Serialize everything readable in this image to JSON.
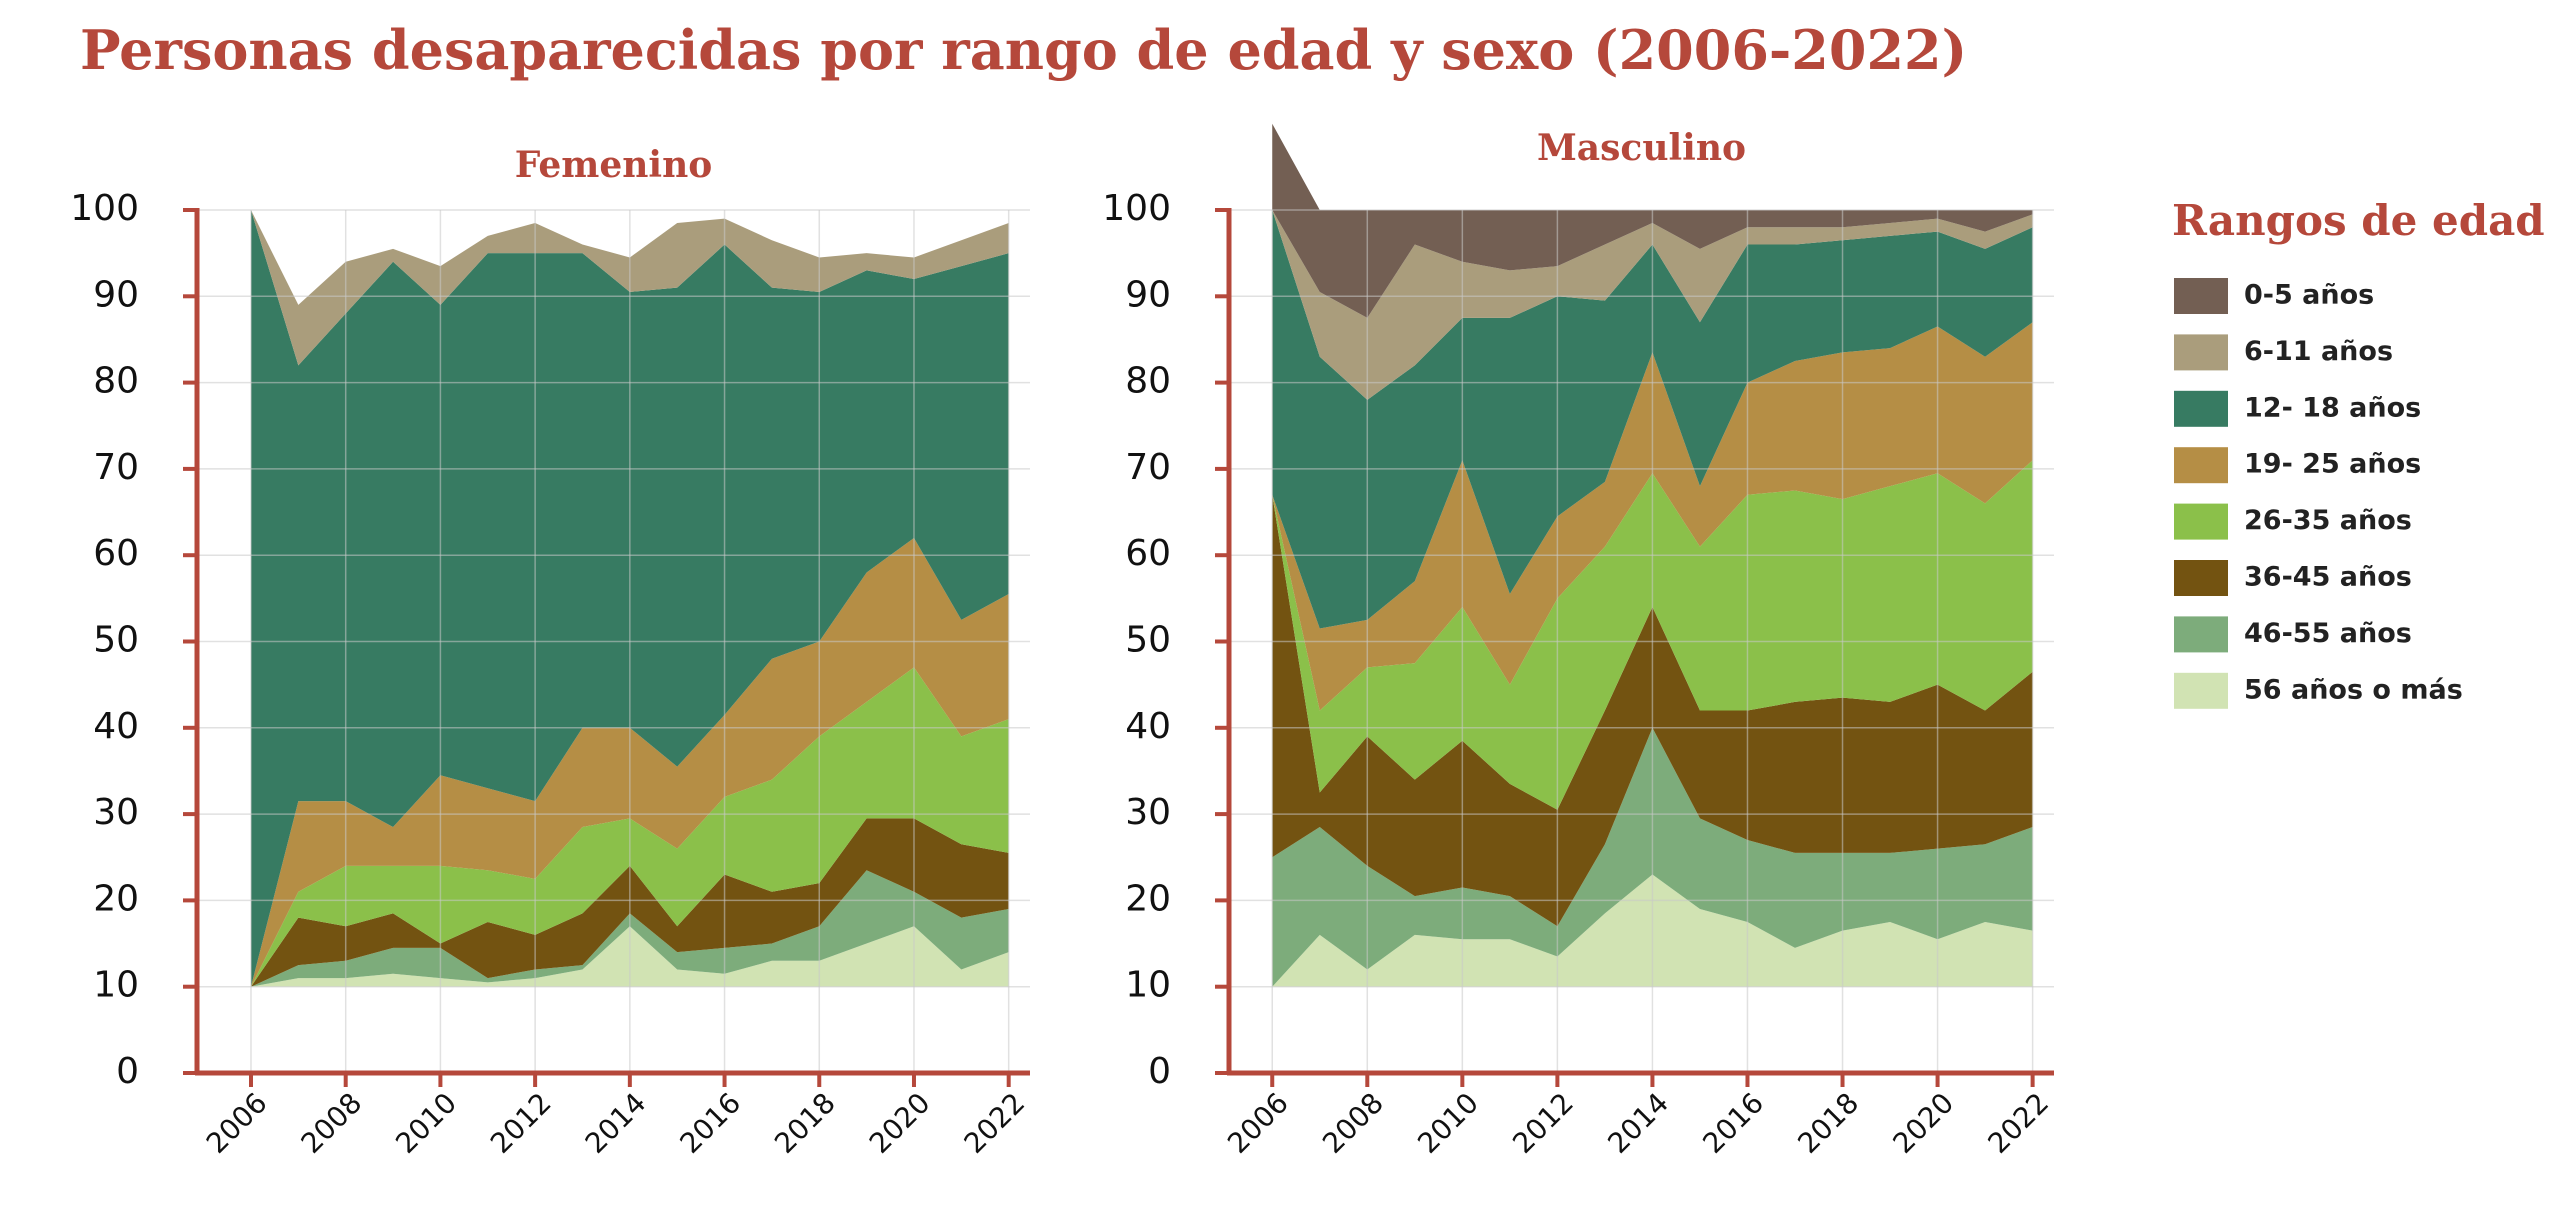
{
  "title": "Personas desaparecidas por rango de edad y sexo  (2006-2022)",
  "legend_title": "Rangos de edad",
  "chart_data": [
    {
      "type": "area",
      "stacked": true,
      "title": "Femenino",
      "baseline": 10,
      "x": [
        2006,
        2007,
        2008,
        2009,
        2010,
        2011,
        2012,
        2013,
        2014,
        2015,
        2016,
        2017,
        2018,
        2019,
        2020,
        2021,
        2022
      ],
      "xlim": [
        2004.86,
        2022.45
      ],
      "xticks": [
        2006,
        2008,
        2010,
        2012,
        2014,
        2016,
        2018,
        2020,
        2022
      ],
      "ylim": [
        0,
        100
      ],
      "yticks": [
        0,
        10,
        20,
        30,
        40,
        50,
        60,
        70,
        80,
        90,
        100
      ],
      "grid": true,
      "series": [
        {
          "name": "0-5 años",
          "color": "#735f53",
          "values": [
            0,
            0,
            0,
            0,
            0,
            0,
            0,
            0,
            0,
            0,
            0,
            0,
            0,
            0,
            0,
            0,
            0
          ]
        },
        {
          "name": "6-11 años",
          "color": "#aa9d7c",
          "values": [
            0,
            7,
            6,
            1.5,
            4.5,
            2,
            3.5,
            1,
            4,
            7.5,
            3,
            5.5,
            4,
            2,
            2.5,
            3,
            3.5
          ]
        },
        {
          "name": "12- 18 años",
          "color": "#377b62",
          "values": [
            90,
            50.5,
            56.5,
            65.5,
            54.5,
            62,
            63.5,
            55,
            50.5,
            55.5,
            54.5,
            43,
            40.5,
            35,
            30,
            41,
            39.5
          ]
        },
        {
          "name": "19- 25  años",
          "color": "#b58e45",
          "values": [
            0,
            10.5,
            7.5,
            4.5,
            10.5,
            9.5,
            9,
            11.5,
            10.5,
            9.5,
            9.5,
            14,
            11,
            15,
            15,
            13.5,
            14.5
          ]
        },
        {
          "name": "26-35  años",
          "color": "#8bc04a",
          "values": [
            0,
            3,
            7,
            5.5,
            9,
            6,
            6.5,
            10,
            5.5,
            9,
            9,
            13,
            17,
            13.5,
            17.5,
            12.5,
            15.5
          ]
        },
        {
          "name": "36-45 años",
          "color": "#735311",
          "values": [
            0,
            5.5,
            4,
            4,
            0.5,
            6.5,
            4,
            6,
            5.5,
            3,
            8.5,
            6,
            5,
            6,
            8.5,
            8.5,
            6.5
          ]
        },
        {
          "name": "46-55 años",
          "color": "#7dac7b",
          "values": [
            0,
            1.5,
            2,
            3,
            3.5,
            0.5,
            1,
            0.5,
            1.5,
            2,
            3,
            2,
            4,
            8.5,
            4,
            6,
            5
          ]
        },
        {
          "name": "56 años o más",
          "color": "#d1e3b3",
          "values": [
            0,
            1,
            1,
            1.5,
            1,
            0.5,
            1,
            2,
            7,
            2,
            1.5,
            3,
            3,
            5,
            7,
            2,
            4
          ]
        }
      ]
    },
    {
      "type": "area",
      "stacked": true,
      "title": "Masculino",
      "baseline": 10,
      "x": [
        2006,
        2007,
        2008,
        2009,
        2010,
        2011,
        2012,
        2013,
        2014,
        2015,
        2016,
        2017,
        2018,
        2019,
        2020,
        2021,
        2022
      ],
      "xlim": [
        2005.09,
        2022.45
      ],
      "xticks": [
        2006,
        2008,
        2010,
        2012,
        2014,
        2016,
        2018,
        2020,
        2022
      ],
      "ylim": [
        0,
        100
      ],
      "yticks": [
        0,
        10,
        20,
        30,
        40,
        50,
        60,
        70,
        80,
        90,
        100
      ],
      "grid": true,
      "series": [
        {
          "color": "#735f53",
          "values": [
            10,
            9.5,
            12.5,
            4,
            6,
            7,
            6.5,
            4,
            1.5,
            4.5,
            2,
            2,
            2,
            1.5,
            1,
            2.5,
            0.5
          ]
        },
        {
          "color": "#aa9d7c",
          "values": [
            0,
            7.5,
            9.5,
            14,
            6.5,
            5.5,
            3.5,
            6.5,
            2.5,
            8.5,
            2,
            2,
            1.5,
            1.5,
            1.5,
            2,
            1.5
          ]
        },
        {
          "color": "#377b62",
          "values": [
            33,
            31.5,
            25.5,
            25,
            16.5,
            32,
            25.5,
            21,
            12.5,
            19,
            16,
            13.5,
            13,
            13,
            11,
            12.5,
            11
          ]
        },
        {
          "color": "#b58e45",
          "values": [
            0,
            9.5,
            5.5,
            9.5,
            17,
            10.5,
            9.5,
            7.5,
            14,
            7,
            13,
            15,
            17,
            16,
            17,
            17,
            16
          ]
        },
        {
          "color": "#8bc04a",
          "values": [
            0,
            9.5,
            8,
            13.5,
            15.5,
            11.5,
            24.5,
            19,
            15.5,
            19,
            25,
            24.5,
            23,
            25,
            24.5,
            24,
            24.5
          ]
        },
        {
          "color": "#735311",
          "values": [
            42,
            4,
            15,
            13.5,
            17,
            13,
            13.5,
            15.5,
            14,
            12.5,
            15,
            17.5,
            18,
            17.5,
            19,
            15.5,
            18
          ]
        },
        {
          "color": "#7dac7b",
          "values": [
            15,
            12.5,
            12,
            4.5,
            6,
            5,
            3.5,
            8,
            17,
            10.5,
            9.5,
            11,
            9,
            8,
            10.5,
            9,
            12
          ]
        },
        {
          "color": "#d1e3b3",
          "values": [
            0,
            6,
            2,
            6,
            5.5,
            5.5,
            3.5,
            8.5,
            13,
            9,
            7.5,
            4.5,
            6.5,
            7.5,
            5.5,
            7.5,
            6.5
          ]
        }
      ]
    }
  ]
}
